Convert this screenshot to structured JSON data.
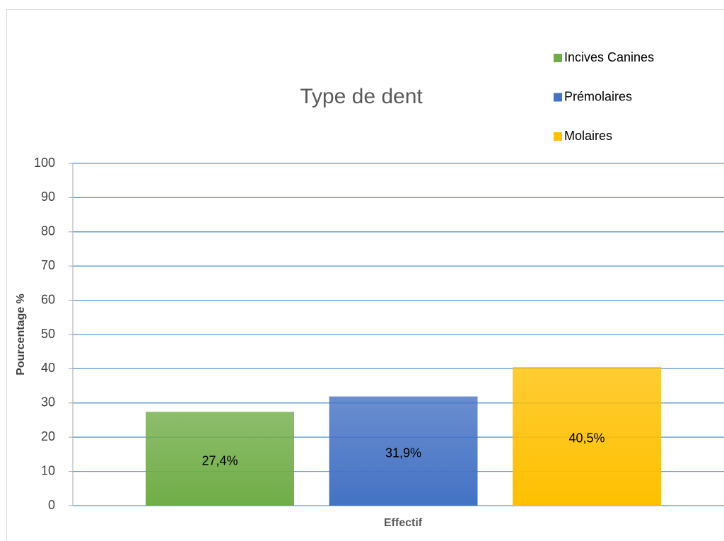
{
  "chart_data": {
    "type": "bar",
    "title": "Type de dent",
    "xlabel": "Effectif",
    "ylabel": "Pourcentage %",
    "categories": [
      null
    ],
    "series": [
      {
        "name": "Incives Canines",
        "color": "#70ad47",
        "values": [
          27.4
        ],
        "value_labels": [
          "27,4%"
        ]
      },
      {
        "name": "Prémolaires",
        "color": "#4472c4",
        "values": [
          31.9
        ],
        "value_labels": [
          "31,9%"
        ]
      },
      {
        "name": "Molaires",
        "color": "#ffc000",
        "values": [
          40.5
        ],
        "value_labels": [
          "40,5%"
        ]
      }
    ],
    "ylim": [
      0,
      100
    ],
    "yticks": [
      0,
      10,
      20,
      30,
      40,
      50,
      60,
      70,
      80,
      90,
      100
    ],
    "grid": true,
    "legend": "top-right"
  }
}
